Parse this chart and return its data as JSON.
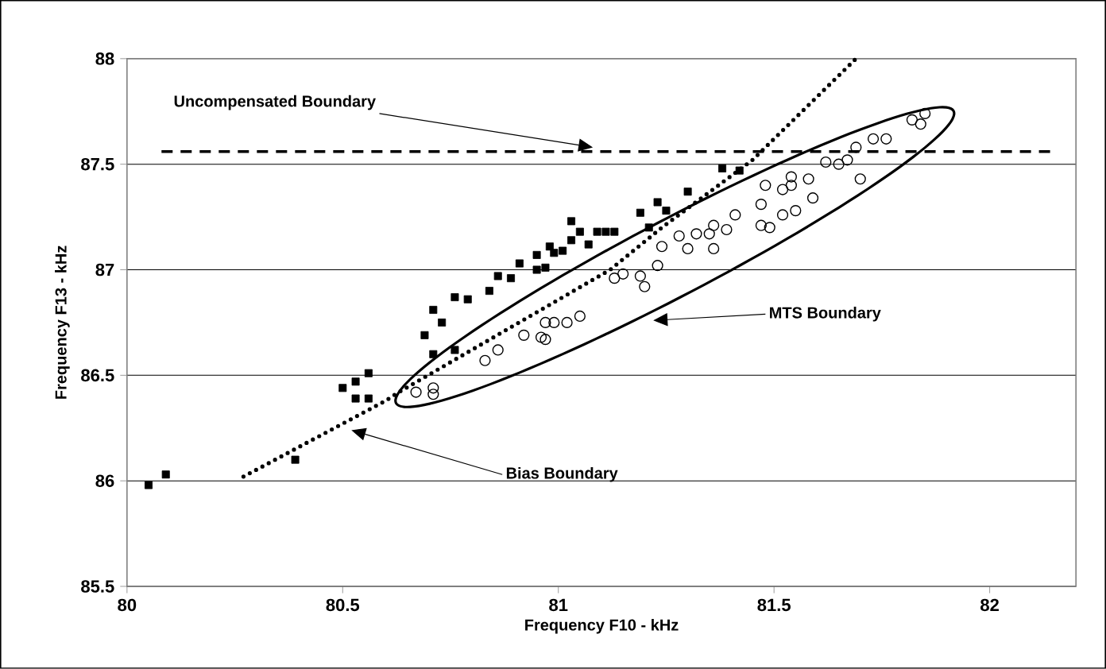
{
  "chart_data": {
    "type": "scatter",
    "xlabel": "Frequency F10 - kHz",
    "ylabel": "Frequency F13 - kHz",
    "xlim": [
      80,
      82.2
    ],
    "ylim": [
      85.5,
      88
    ],
    "xticks": [
      80,
      80.5,
      81,
      81.5,
      82
    ],
    "yticks": [
      85.5,
      86,
      86.5,
      87,
      87.5,
      88
    ],
    "grid": "y",
    "series": [
      {
        "marker": "square",
        "color": "#000000",
        "x": [
          80.05,
          80.09,
          80.39,
          80.5,
          80.53,
          80.53,
          80.56,
          80.56,
          80.69,
          80.71,
          80.73,
          80.71,
          80.76,
          80.76,
          80.79,
          80.84,
          80.86,
          80.89,
          80.91,
          80.95,
          80.95,
          80.97,
          80.98,
          80.99,
          81.01,
          81.03,
          81.03,
          81.05,
          81.07,
          81.09,
          81.11,
          81.13,
          81.19,
          81.21,
          81.23,
          81.25,
          81.3,
          81.38,
          81.42
        ],
        "values": [
          85.98,
          86.03,
          86.1,
          86.44,
          86.39,
          86.47,
          86.39,
          86.51,
          86.69,
          86.81,
          86.75,
          86.6,
          86.62,
          86.87,
          86.86,
          86.9,
          86.97,
          86.96,
          87.03,
          87.0,
          87.07,
          87.01,
          87.11,
          87.08,
          87.09,
          87.14,
          87.23,
          87.18,
          87.12,
          87.18,
          87.18,
          87.18,
          87.27,
          87.2,
          87.32,
          87.28,
          87.37,
          87.48,
          87.47
        ]
      },
      {
        "marker": "circle",
        "color": "#000000",
        "x": [
          80.67,
          80.71,
          80.71,
          80.83,
          80.86,
          80.92,
          80.96,
          80.97,
          80.97,
          80.99,
          81.02,
          81.05,
          81.13,
          81.15,
          81.19,
          81.2,
          81.23,
          81.24,
          81.28,
          81.3,
          81.32,
          81.35,
          81.36,
          81.36,
          81.39,
          81.41,
          81.47,
          81.47,
          81.49,
          81.52,
          81.55,
          81.48,
          81.52,
          81.54,
          81.54,
          81.58,
          81.59,
          81.62,
          81.65,
          81.67,
          81.69,
          81.7,
          81.73,
          81.76,
          81.82,
          81.84,
          81.85
        ],
        "values": [
          86.42,
          86.44,
          86.41,
          86.57,
          86.62,
          86.69,
          86.68,
          86.67,
          86.75,
          86.75,
          86.75,
          86.78,
          86.96,
          86.98,
          86.97,
          86.92,
          87.02,
          87.11,
          87.16,
          87.1,
          87.17,
          87.17,
          87.21,
          87.1,
          87.19,
          87.26,
          87.31,
          87.21,
          87.2,
          87.26,
          87.28,
          87.4,
          87.38,
          87.44,
          87.4,
          87.43,
          87.34,
          87.51,
          87.5,
          87.52,
          87.58,
          87.43,
          87.62,
          87.62,
          87.71,
          87.69,
          87.74
        ]
      },
      {
        "type": "line",
        "marker": "none",
        "line_style": "dotted",
        "color": "#000000",
        "x": [
          80.27,
          80.6,
          80.63,
          81.12,
          81.24,
          81.45,
          81.69
        ],
        "values": [
          86.02,
          86.38,
          86.42,
          87.0,
          87.2,
          87.52,
          88.0
        ]
      }
    ],
    "ref_lines": [
      {
        "axis": "y",
        "value": 87.56,
        "label": "Uncompensated Boundary",
        "line_style": "dashed",
        "color": "#000000"
      }
    ],
    "annotations": [
      "MTS Boundary",
      "Bias Boundary"
    ]
  }
}
